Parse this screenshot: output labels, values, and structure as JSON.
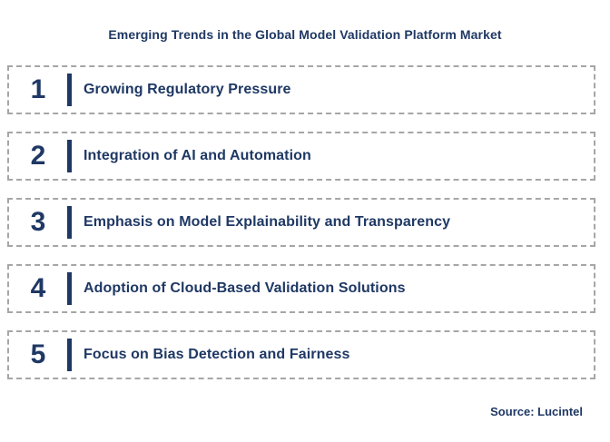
{
  "title": "Emerging Trends in the Global Model Validation Platform Market",
  "items": [
    {
      "num": "1",
      "label": "Growing Regulatory Pressure"
    },
    {
      "num": "2",
      "label": "Integration of AI and Automation"
    },
    {
      "num": "3",
      "label": "Emphasis on Model Explainability and Transparency"
    },
    {
      "num": "4",
      "label": "Adoption of Cloud-Based Validation Solutions"
    },
    {
      "num": "5",
      "label": "Focus on Bias Detection and Fairness"
    }
  ],
  "source": "Source: Lucintel",
  "colors": {
    "navy": "#1F3864",
    "dashed_border": "#A6A6A6",
    "background": "#FFFFFF"
  }
}
